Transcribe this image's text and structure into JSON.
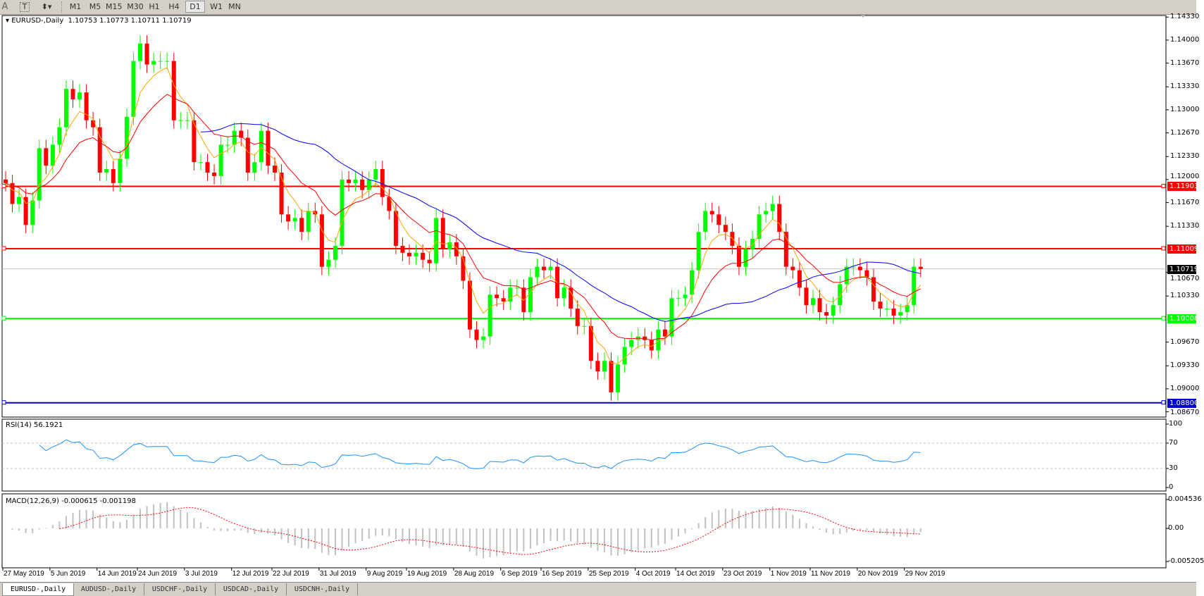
{
  "toolbar": {
    "icons": [
      "text-a-icon",
      "text-box-icon",
      "arrows-icon"
    ],
    "text_a": "A",
    "text_t": "T",
    "timeframes": [
      "M1",
      "M5",
      "M15",
      "M30",
      "H1",
      "H4",
      "D1",
      "W1",
      "MN"
    ],
    "selected": "D1"
  },
  "chart": {
    "title": "EURUSD-,Daily",
    "ohlc": "1.10753 1.10773 1.10711 1.10719",
    "price_ticks": [
      "1.14330",
      "1.14000",
      "1.13670",
      "1.13330",
      "1.13000",
      "1.12670",
      "1.12330",
      "1.12000",
      "1.11670",
      "1.11330",
      "1.10670",
      "1.10330",
      "1.09670",
      "1.09330",
      "1.09000",
      "1.08670"
    ],
    "hlines": [
      {
        "label": "1.11903",
        "color": "#ff0000"
      },
      {
        "label": "1.11009",
        "color": "#ff0000"
      },
      {
        "label": "1.10719",
        "color": "#000000"
      },
      {
        "label": "1.10008",
        "color": "#00ff00"
      },
      {
        "label": "1.08800",
        "color": "#0000cc"
      }
    ],
    "colors": {
      "bull": "#00ff00",
      "bear": "#ff0000",
      "ma_fast": "#ffa500",
      "ma_mid": "#ff0000",
      "ma_slow": "#0000ff",
      "rsi": "#1e90ff",
      "macd_hist": "#c0c0c0",
      "macd_signal": "#ff0000"
    },
    "closes": [
      1.1195,
      1.1165,
      1.1175,
      1.1135,
      1.117,
      1.1245,
      1.122,
      1.125,
      1.1275,
      1.133,
      1.1315,
      1.1325,
      1.1285,
      1.1275,
      1.121,
      1.1215,
      1.1195,
      1.123,
      1.129,
      1.137,
      1.1395,
      1.1365,
      1.137,
      1.137,
      1.137,
      1.1285,
      1.1285,
      1.1285,
      1.1225,
      1.1225,
      1.121,
      1.1205,
      1.125,
      1.125,
      1.127,
      1.126,
      1.121,
      1.1225,
      1.127,
      1.122,
      1.121,
      1.115,
      1.114,
      1.1145,
      1.1125,
      1.1155,
      1.115,
      1.1075,
      1.1085,
      1.1105,
      1.12,
      1.1195,
      1.12,
      1.1185,
      1.12,
      1.1215,
      1.1175,
      1.1155,
      1.1105,
      1.1095,
      1.109,
      1.1095,
      1.1085,
      1.108,
      1.1145,
      1.11,
      1.111,
      1.109,
      1.1055,
      1.0985,
      1.097,
      1.0975,
      1.1035,
      1.103,
      1.1025,
      1.1045,
      1.1045,
      1.101,
      1.106,
      1.1075,
      1.107,
      1.1075,
      1.103,
      1.1045,
      1.1015,
      1.099,
      1.099,
      1.094,
      1.0925,
      1.094,
      1.0895,
      1.0935,
      1.096,
      1.097,
      1.0975,
      1.097,
      1.0955,
      1.0985,
      1.0975,
      1.103,
      1.103,
      1.1035,
      1.107,
      1.1125,
      1.1155,
      1.115,
      1.1135,
      1.1125,
      1.1105,
      1.1075,
      1.11,
      1.1115,
      1.115,
      1.1155,
      1.1165,
      1.1125,
      1.1075,
      1.107,
      1.1045,
      1.102,
      1.103,
      1.101,
      1.1005,
      1.102,
      1.105,
      1.1075,
      1.1075,
      1.107,
      1.106,
      1.1025,
      1.1015,
      1.1015,
      1.1005,
      1.101,
      1.102,
      1.1075,
      1.10719
    ]
  },
  "rsi": {
    "label": "RSI(14) 56.1921",
    "ticks": [
      "100",
      "70",
      "30",
      "0"
    ]
  },
  "macd": {
    "label": "MACD(12,26,9) -0.000615 -0.001198",
    "ticks": [
      "0.004536",
      "0.00",
      "-0.005205"
    ]
  },
  "dates": [
    {
      "label": "27 May 2019",
      "index": 0
    },
    {
      "label": "5 Jun 2019",
      "index": 7
    },
    {
      "label": "14 Jun 2019",
      "index": 14
    },
    {
      "label": "24 Jun 2019",
      "index": 20
    },
    {
      "label": "3 Jul 2019",
      "index": 27
    },
    {
      "label": "12 Jul 2019",
      "index": 34
    },
    {
      "label": "22 Jul 2019",
      "index": 40
    },
    {
      "label": "31 Jul 2019",
      "index": 47
    },
    {
      "label": "9 Aug 2019",
      "index": 54
    },
    {
      "label": "19 Aug 2019",
      "index": 60
    },
    {
      "label": "28 Aug 2019",
      "index": 67
    },
    {
      "label": "6 Sep 2019",
      "index": 74
    },
    {
      "label": "16 Sep 2019",
      "index": 80
    },
    {
      "label": "25 Sep 2019",
      "index": 87
    },
    {
      "label": "4 Oct 2019",
      "index": 94
    },
    {
      "label": "14 Oct 2019",
      "index": 100
    },
    {
      "label": "23 Oct 2019",
      "index": 107
    },
    {
      "label": "1 Nov 2019",
      "index": 114
    },
    {
      "label": "11 Nov 2019",
      "index": 120
    },
    {
      "label": "20 Nov 2019",
      "index": 127
    },
    {
      "label": "29 Nov 2019",
      "index": 134
    }
  ],
  "tabs": [
    "EURUSD-,Daily",
    "AUDUSD-,Daily",
    "USDCHF-,Daily",
    "USDCAD-,Daily",
    "USDCNH-,Daily"
  ]
}
